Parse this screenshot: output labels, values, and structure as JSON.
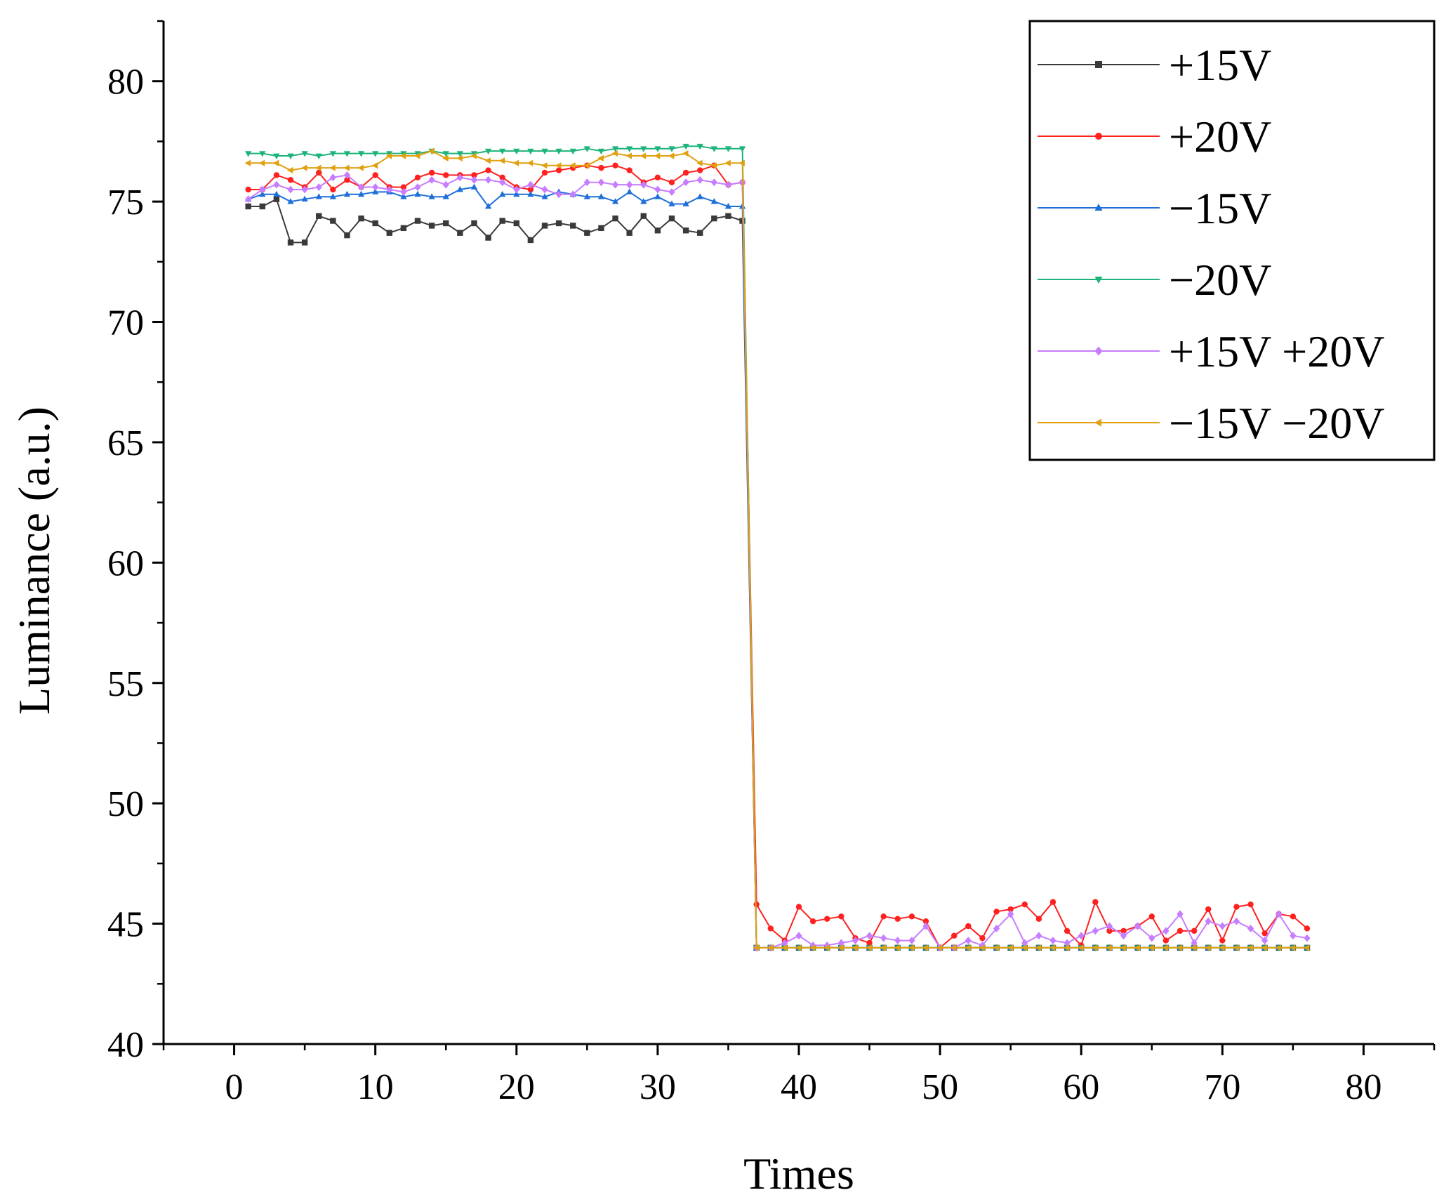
{
  "chart_data": {
    "type": "line",
    "title": "",
    "xlabel": "Times",
    "ylabel": "Luminance (a.u.)",
    "xlim": [
      -5,
      85
    ],
    "ylim": [
      40,
      82.5
    ],
    "xticks": [
      0,
      10,
      20,
      30,
      40,
      50,
      60,
      70,
      80
    ],
    "yticks": [
      40,
      45,
      50,
      55,
      60,
      65,
      70,
      75,
      80
    ],
    "x_minor_step": 5,
    "y_minor_step": 2.5,
    "legend_position": "top-right",
    "x": [
      1,
      2,
      3,
      4,
      5,
      6,
      7,
      8,
      9,
      10,
      11,
      12,
      13,
      14,
      15,
      16,
      17,
      18,
      19,
      20,
      21,
      22,
      23,
      24,
      25,
      26,
      27,
      28,
      29,
      30,
      31,
      32,
      33,
      34,
      35,
      36,
      37,
      38,
      39,
      40,
      41,
      42,
      43,
      44,
      45,
      46,
      47,
      48,
      49,
      50,
      51,
      52,
      53,
      54,
      55,
      56,
      57,
      58,
      59,
      60,
      61,
      62,
      63,
      64,
      65,
      66,
      67,
      68,
      69,
      70,
      71,
      72,
      73,
      74,
      75,
      76
    ],
    "series": [
      {
        "name": "+15V",
        "color": "#3a3a3a",
        "marker": "square",
        "values": [
          74.8,
          74.8,
          75.1,
          73.3,
          73.3,
          74.4,
          74.2,
          73.6,
          74.3,
          74.1,
          73.7,
          73.9,
          74.2,
          74.0,
          74.1,
          73.7,
          74.1,
          73.5,
          74.2,
          74.1,
          73.4,
          74.0,
          74.1,
          74.0,
          73.7,
          73.9,
          74.3,
          73.7,
          74.4,
          73.8,
          74.3,
          73.8,
          73.7,
          74.3,
          74.4,
          74.2,
          44.0,
          44.0,
          44.0,
          44.0,
          44.0,
          44.0,
          44.0,
          44.0,
          44.0,
          44.0,
          44.0,
          44.0,
          44.0,
          44.0,
          44.0,
          44.0,
          44.0,
          44.0,
          44.0,
          44.0,
          44.0,
          44.0,
          44.0,
          44.0,
          44.0,
          44.0,
          44.0,
          44.0,
          44.0,
          44.0,
          44.0,
          44.0,
          44.0,
          44.0,
          44.0,
          44.0,
          44.0,
          44.0,
          44.0,
          44.0
        ]
      },
      {
        "name": "+20V",
        "color": "#ff2020",
        "marker": "circle",
        "values": [
          75.5,
          75.5,
          76.1,
          75.9,
          75.6,
          76.2,
          75.5,
          75.9,
          75.6,
          76.1,
          75.6,
          75.6,
          76.0,
          76.2,
          76.1,
          76.1,
          76.1,
          76.3,
          76.0,
          75.6,
          75.5,
          76.2,
          76.3,
          76.4,
          76.5,
          76.4,
          76.5,
          76.3,
          75.8,
          76.0,
          75.8,
          76.2,
          76.3,
          76.5,
          75.7,
          75.8,
          45.8,
          44.8,
          44.3,
          45.7,
          45.1,
          45.2,
          45.3,
          44.4,
          44.2,
          45.3,
          45.2,
          45.3,
          45.1,
          44.0,
          44.5,
          44.9,
          44.4,
          45.5,
          45.6,
          45.8,
          45.2,
          45.9,
          44.7,
          44.1,
          45.9,
          44.7,
          44.7,
          44.9,
          45.3,
          44.3,
          44.7,
          44.7,
          45.6,
          44.3,
          45.7,
          45.8,
          44.6,
          45.4,
          45.3,
          44.8
        ]
      },
      {
        "name": "−15V",
        "color": "#1e6fd9",
        "marker": "triangle-up",
        "values": [
          75.1,
          75.3,
          75.3,
          75.0,
          75.1,
          75.2,
          75.2,
          75.3,
          75.3,
          75.4,
          75.4,
          75.2,
          75.3,
          75.2,
          75.2,
          75.5,
          75.6,
          74.8,
          75.3,
          75.3,
          75.3,
          75.2,
          75.4,
          75.3,
          75.2,
          75.2,
          75.0,
          75.4,
          75.0,
          75.2,
          74.9,
          74.9,
          75.2,
          75.0,
          74.8,
          74.8,
          44.0,
          44.0,
          44.0,
          44.0,
          44.0,
          44.0,
          44.0,
          44.0,
          44.0,
          44.0,
          44.0,
          44.0,
          44.0,
          44.0,
          44.0,
          44.0,
          44.0,
          44.0,
          44.0,
          44.0,
          44.0,
          44.0,
          44.0,
          44.0,
          44.0,
          44.0,
          44.0,
          44.0,
          44.0,
          44.0,
          44.0,
          44.0,
          44.0,
          44.0,
          44.0,
          44.0,
          44.0,
          44.0,
          44.0,
          44.0
        ]
      },
      {
        "name": "−20V",
        "color": "#1db37a",
        "marker": "triangle-down",
        "values": [
          77.0,
          77.0,
          76.9,
          76.9,
          77.0,
          76.9,
          77.0,
          77.0,
          77.0,
          77.0,
          77.0,
          77.0,
          77.0,
          77.1,
          77.0,
          77.0,
          77.0,
          77.1,
          77.1,
          77.1,
          77.1,
          77.1,
          77.1,
          77.1,
          77.2,
          77.1,
          77.2,
          77.2,
          77.2,
          77.2,
          77.2,
          77.3,
          77.3,
          77.2,
          77.2,
          77.2,
          44.0,
          44.0,
          44.0,
          44.0,
          44.0,
          44.0,
          44.0,
          44.0,
          44.0,
          44.0,
          44.0,
          44.0,
          44.0,
          44.0,
          44.0,
          44.0,
          44.0,
          44.0,
          44.0,
          44.0,
          44.0,
          44.0,
          44.0,
          44.0,
          44.0,
          44.0,
          44.0,
          44.0,
          44.0,
          44.0,
          44.0,
          44.0,
          44.0,
          44.0,
          44.0,
          44.0,
          44.0,
          44.0,
          44.0,
          44.0
        ]
      },
      {
        "name": "+15V +20V",
        "color": "#c77dff",
        "marker": "diamond",
        "values": [
          75.1,
          75.5,
          75.7,
          75.5,
          75.5,
          75.6,
          76.0,
          76.1,
          75.6,
          75.6,
          75.5,
          75.4,
          75.6,
          75.9,
          75.7,
          76.0,
          75.9,
          75.9,
          75.8,
          75.5,
          75.7,
          75.5,
          75.3,
          75.3,
          75.8,
          75.8,
          75.7,
          75.7,
          75.7,
          75.5,
          75.4,
          75.8,
          75.9,
          75.8,
          75.7,
          75.8,
          44.0,
          44.0,
          44.2,
          44.5,
          44.1,
          44.1,
          44.2,
          44.3,
          44.5,
          44.4,
          44.3,
          44.3,
          44.9,
          44.0,
          44.0,
          44.3,
          44.1,
          44.8,
          45.4,
          44.2,
          44.5,
          44.3,
          44.2,
          44.5,
          44.7,
          44.9,
          44.5,
          44.9,
          44.4,
          44.7,
          45.4,
          44.2,
          45.1,
          44.9,
          45.1,
          44.8,
          44.3,
          45.4,
          44.5,
          44.4
        ]
      },
      {
        "name": "−15V −20V",
        "color": "#e0a010",
        "marker": "triangle-left",
        "values": [
          76.6,
          76.6,
          76.6,
          76.3,
          76.4,
          76.4,
          76.4,
          76.4,
          76.4,
          76.5,
          76.9,
          76.9,
          76.9,
          77.1,
          76.8,
          76.8,
          76.9,
          76.7,
          76.7,
          76.6,
          76.6,
          76.5,
          76.5,
          76.5,
          76.5,
          76.8,
          77.0,
          76.9,
          76.9,
          76.9,
          76.9,
          77.0,
          76.6,
          76.5,
          76.6,
          76.6,
          44.0,
          44.0,
          44.0,
          44.0,
          44.0,
          44.0,
          44.0,
          44.0,
          44.0,
          44.0,
          44.0,
          44.0,
          44.0,
          44.0,
          44.0,
          44.0,
          44.0,
          44.0,
          44.0,
          44.0,
          44.0,
          44.0,
          44.0,
          44.0,
          44.0,
          44.0,
          44.0,
          44.0,
          44.0,
          44.0,
          44.0,
          44.0,
          44.0,
          44.0,
          44.0,
          44.0,
          44.0,
          44.0,
          44.0,
          44.0
        ]
      }
    ]
  }
}
